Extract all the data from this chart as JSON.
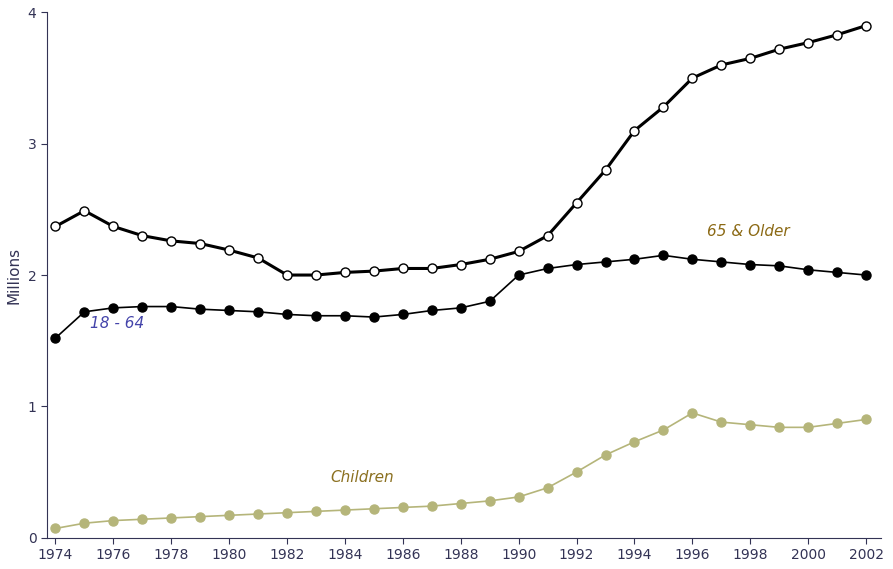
{
  "years": [
    1974,
    1975,
    1976,
    1977,
    1978,
    1979,
    1980,
    1981,
    1982,
    1983,
    1984,
    1985,
    1986,
    1987,
    1988,
    1989,
    1990,
    1991,
    1992,
    1993,
    1994,
    1995,
    1996,
    1997,
    1998,
    1999,
    2000,
    2001,
    2002
  ],
  "age_65_older": [
    2.37,
    2.49,
    2.37,
    2.3,
    2.26,
    2.24,
    2.19,
    2.13,
    2.0,
    2.0,
    2.02,
    2.03,
    2.05,
    2.05,
    2.08,
    2.12,
    2.18,
    2.3,
    2.55,
    2.8,
    3.1,
    3.28,
    3.5,
    3.6,
    3.65,
    3.72,
    3.77,
    3.83,
    3.9
  ],
  "age_18_64": [
    1.52,
    1.72,
    1.75,
    1.76,
    1.76,
    1.74,
    1.73,
    1.72,
    1.7,
    1.69,
    1.69,
    1.68,
    1.7,
    1.73,
    1.75,
    1.8,
    2.0,
    2.05,
    2.08,
    2.1,
    2.12,
    2.15,
    2.12,
    2.1,
    2.08,
    2.07,
    2.04,
    2.02,
    2.0
  ],
  "children": [
    0.07,
    0.11,
    0.13,
    0.14,
    0.15,
    0.16,
    0.17,
    0.18,
    0.19,
    0.2,
    0.21,
    0.22,
    0.23,
    0.24,
    0.26,
    0.28,
    0.31,
    0.38,
    0.5,
    0.63,
    0.73,
    0.82,
    0.95,
    0.88,
    0.86,
    0.84,
    0.84,
    0.87,
    0.9
  ],
  "ylabel": "Millions",
  "ylim": [
    0,
    4
  ],
  "yticks": [
    0,
    1,
    2,
    3,
    4
  ],
  "xlim": [
    1974,
    2002
  ],
  "xticks": [
    1974,
    1976,
    1978,
    1980,
    1982,
    1984,
    1986,
    1988,
    1990,
    1992,
    1994,
    1996,
    1998,
    2000,
    2002
  ],
  "color_line": "#000000",
  "color_children": "#b5b57a",
  "label_65_older": "65 & Older",
  "label_18_64": "18 - 64",
  "label_children": "Children",
  "label_color_18_64": "#4444aa",
  "label_color_65_older": "#8b6914",
  "label_color_children": "#8b7020",
  "bg_color": "#ffffff",
  "linewidth_thin": 1.2,
  "linewidth_thick": 2.2,
  "markersize": 6.5,
  "spine_color": "#333355",
  "tick_color": "#333355",
  "label_color_axis": "#333355"
}
